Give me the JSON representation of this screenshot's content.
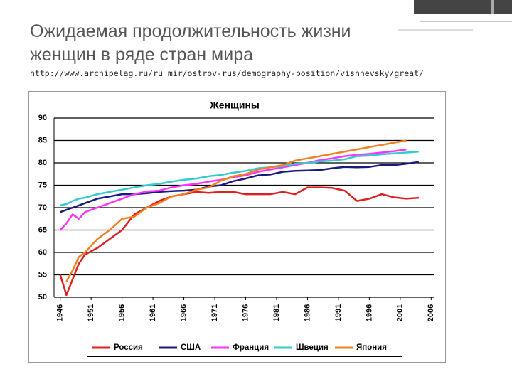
{
  "header": {
    "title_lines": [
      "Ожидаемая продолжительность жизни",
      "женщин в  ряде стран мира"
    ],
    "url": "http://www.archipelag.ru/ru_mir/ostrov-rus/demography-position/vishnevsky/great/"
  },
  "chart_data": {
    "type": "line",
    "title": "Женщины",
    "x": [
      1946,
      1947,
      1948,
      1949,
      1950,
      1952,
      1954,
      1956,
      1958,
      1960,
      1962,
      1964,
      1966,
      1968,
      1970,
      1972,
      1974,
      1976,
      1978,
      1980,
      1982,
      1984,
      1986,
      1988,
      1990,
      1992,
      1994,
      1996,
      1998,
      2000,
      2002,
      2004
    ],
    "series": [
      {
        "name": "Россия",
        "color": "#e02020",
        "values": [
          55,
          50.5,
          54,
          57.5,
          59.5,
          61,
          63,
          65,
          68.5,
          70,
          71.5,
          72.5,
          73,
          73.5,
          73.3,
          73.5,
          73.5,
          73,
          73,
          73,
          73.5,
          73,
          74.5,
          74.5,
          74.4,
          73.8,
          71.5,
          72,
          73,
          72.3,
          72,
          72.2
        ]
      },
      {
        "name": "США",
        "color": "#1a1a7a",
        "values": [
          69,
          69.5,
          70,
          70.5,
          71,
          72,
          72.5,
          73,
          73,
          73.2,
          73.5,
          73.7,
          73.8,
          74,
          74.7,
          75,
          75.9,
          76.5,
          77.2,
          77.4,
          78,
          78.2,
          78.3,
          78.4,
          78.8,
          79.1,
          79,
          79.1,
          79.5,
          79.5,
          79.8,
          80.2
        ]
      },
      {
        "name": "Франция",
        "color": "#ff33ff",
        "values": [
          65,
          66.5,
          68.5,
          67.5,
          69,
          70,
          71,
          72,
          73,
          73.6,
          73.8,
          74.5,
          75,
          75.3,
          75.8,
          76.2,
          76.8,
          77.2,
          78,
          78.5,
          79,
          79.5,
          80,
          80.6,
          81,
          81.5,
          81.8,
          82,
          82.3,
          82.6,
          83,
          null
        ]
      },
      {
        "name": "Швеция",
        "color": "#33cccc",
        "values": [
          70.5,
          70.8,
          71.5,
          72,
          72.2,
          73,
          73.5,
          74,
          74.5,
          75,
          75.3,
          75.8,
          76.2,
          76.5,
          77,
          77.3,
          77.8,
          78.2,
          78.8,
          79,
          79.3,
          79.8,
          79.9,
          80.3,
          80.5,
          80.8,
          81.5,
          81.6,
          81.9,
          82.1,
          82.3,
          82.5
        ]
      },
      {
        "name": "Япония",
        "color": "#f08020",
        "values": [
          null,
          53.5,
          56,
          59,
          60,
          63,
          65,
          67.5,
          68,
          70,
          71,
          72.5,
          73,
          74,
          74.5,
          76,
          77,
          77.5,
          78.5,
          79,
          79.5,
          80.5,
          81,
          81.5,
          82,
          82.5,
          83,
          83.5,
          84,
          84.5,
          85,
          null
        ]
      }
    ],
    "xlim": [
      1945,
      2007
    ],
    "xticks": [
      1946,
      1951,
      1956,
      1961,
      1966,
      1971,
      1976,
      1981,
      1986,
      1991,
      1996,
      2001,
      2006
    ],
    "ylim": [
      50,
      90
    ],
    "yticks": [
      50,
      55,
      60,
      65,
      70,
      75,
      80,
      85,
      90
    ],
    "grid": true
  }
}
